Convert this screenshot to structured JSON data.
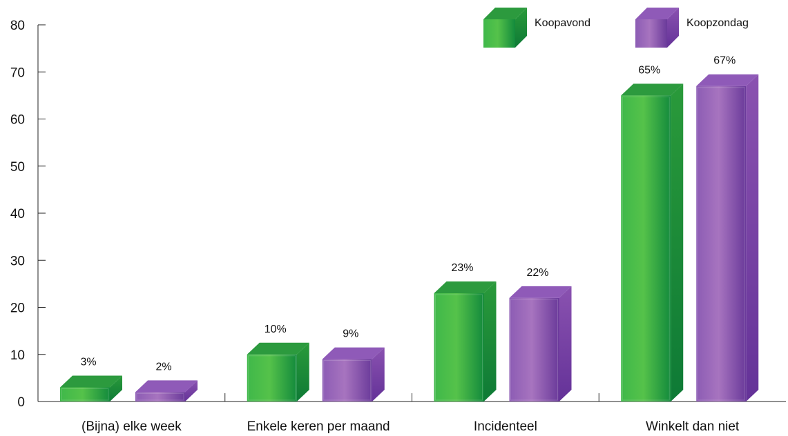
{
  "chart_data": {
    "type": "bar",
    "title": "",
    "xlabel": "",
    "ylabel": "",
    "ylim": [
      0,
      80
    ],
    "yticks": [
      0,
      10,
      20,
      30,
      40,
      50,
      60,
      70,
      80
    ],
    "categories": [
      "(Bijna) elke week",
      "Enkele keren per maand",
      "Incidenteel",
      "Winkelt dan niet"
    ],
    "series": [
      {
        "name": "Koopavond",
        "values": [
          3,
          10,
          23,
          65
        ],
        "labels": [
          "3%",
          "10%",
          "23%",
          "65%"
        ],
        "color": "#2fa84a"
      },
      {
        "name": "Koopzondag",
        "values": [
          2,
          9,
          22,
          67
        ],
        "labels": [
          "2%",
          "9%",
          "22%",
          "67%"
        ],
        "color": "#8a55b0"
      }
    ],
    "legend_position": "top-right",
    "grid": false,
    "style": "3d-bar"
  }
}
